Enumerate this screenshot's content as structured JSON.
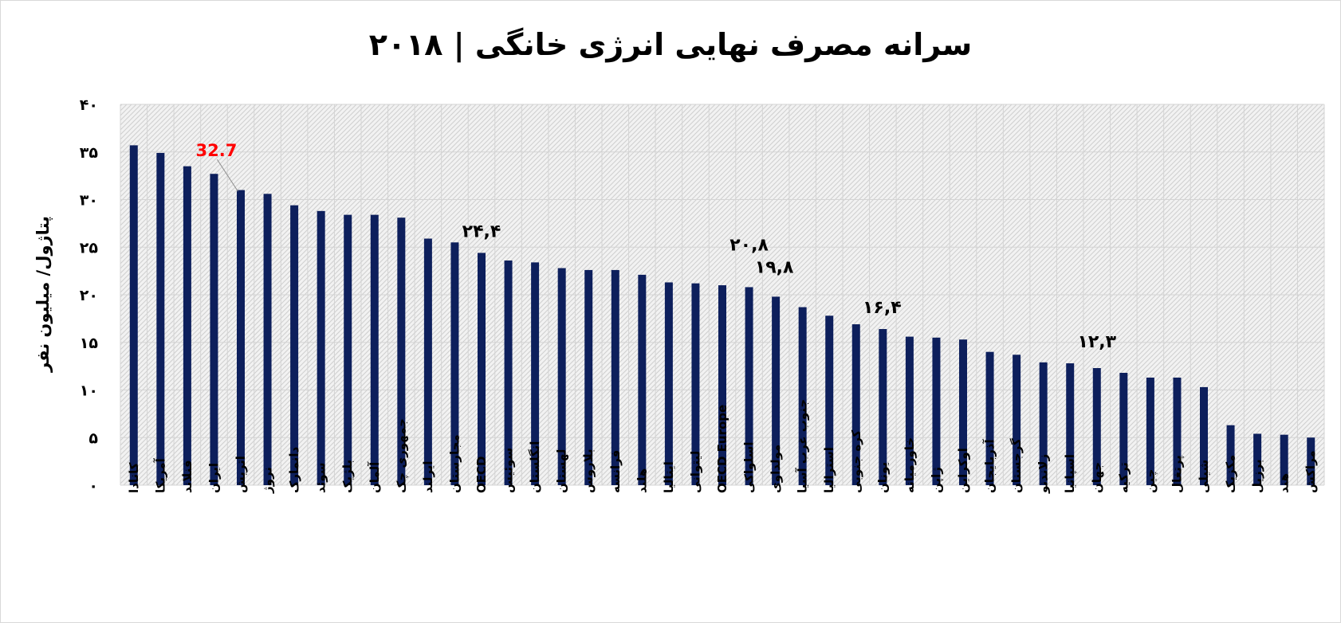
{
  "chart_data": {
    "type": "bar",
    "title": "سرانه مصرف نهایی انرژی خانگی | ۲۰۱۸",
    "ylabel": "پتاژول/ میلیون نفر",
    "ylim": [
      0,
      40
    ],
    "y_ticks": [
      0,
      5,
      10,
      15,
      20,
      25,
      30,
      35,
      40
    ],
    "y_tick_labels": [
      "۰",
      "۵",
      "۱۰",
      "۱۵",
      "۲۰",
      "۲۵",
      "۳۰",
      "۳۵",
      "۴۰"
    ],
    "grid": true,
    "bar_color": "#0d1f5c",
    "categories": [
      "کانادا",
      "آمریکا",
      "فنلاند",
      "ایران",
      "اتریش",
      "نروژ",
      "دانمارک",
      "سوئد",
      "بلژیک",
      "آلمان",
      "جمهوری چک",
      "ایرلند",
      "مجارستان",
      "OECD",
      "سوئیس",
      "انگلستان",
      "لهستان",
      "بلاروس",
      "فرانسه",
      "هلند",
      "ایتالیا",
      "لیتوانی",
      "OECD Europe",
      "اسلواکی",
      "مولداوی",
      "جنوب غرب آسیا",
      "استرالیا",
      "کره جنوبی",
      "یونان",
      "خاورمیانه",
      "ژاپن",
      "اوکراین",
      "آذربایجان",
      "گرجستان",
      "زلاندنو",
      "اسپانیا",
      "جهان",
      "ترکیه",
      "چین",
      "پرتغال",
      "شیلی",
      "مکزیک",
      "برزیل",
      "هند",
      "مراکش"
    ],
    "values": [
      35.7,
      34.9,
      33.5,
      32.7,
      31.0,
      30.6,
      29.4,
      28.8,
      28.4,
      28.4,
      28.1,
      25.9,
      25.5,
      24.4,
      23.6,
      23.4,
      22.8,
      22.6,
      22.6,
      22.1,
      21.3,
      21.2,
      21.0,
      20.8,
      19.8,
      18.7,
      17.8,
      16.9,
      16.4,
      15.6,
      15.5,
      15.3,
      14.0,
      13.7,
      12.9,
      12.8,
      12.3,
      11.8,
      11.3,
      11.3,
      10.3,
      6.3,
      5.4,
      5.3,
      5.0
    ],
    "annotations": [
      {
        "category": "ایران",
        "text": "32.7",
        "color": "#ff0000"
      },
      {
        "category": "OECD",
        "text": "۲۴,۴",
        "color": "#000000"
      },
      {
        "category": "اسلواکی",
        "text": "۲۰,۸",
        "color": "#000000"
      },
      {
        "category": "مولداوی",
        "text": "۱۹,۸",
        "color": "#000000"
      },
      {
        "category": "یونان",
        "text": "۱۶,۴",
        "color": "#000000"
      },
      {
        "category": "جهان",
        "text": "۱۲,۳",
        "color": "#000000"
      }
    ]
  }
}
